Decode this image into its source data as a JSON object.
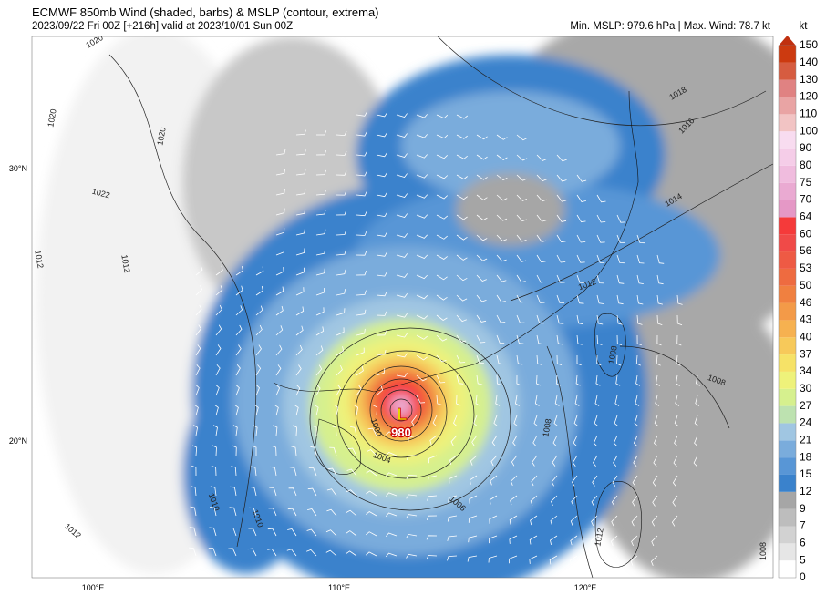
{
  "header": {
    "title": "ECMWF 850mb Wind (shaded, barbs) & MSLP (contour, extrema)",
    "subtitle": "2023/09/22 Fri 00Z [+216h] valid at 2023/10/01 Sun 00Z",
    "info": "Min. MSLP: 979.6 hPa | Max. Wind: 78.7 kt"
  },
  "colorbar": {
    "unit": "kt",
    "levels": [
      0,
      5,
      6,
      7,
      9,
      12,
      15,
      18,
      21,
      24,
      27,
      30,
      34,
      37,
      40,
      43,
      46,
      50,
      53,
      56,
      60,
      64,
      70,
      75,
      80,
      90,
      100,
      110,
      120,
      130,
      140,
      150
    ],
    "colors": [
      "#ffffff",
      "#e6e6e6",
      "#d2d2d2",
      "#bdbdbd",
      "#a6a6a6",
      "#3a82cc",
      "#5896d6",
      "#7aacdc",
      "#a0c6e2",
      "#bde2b0",
      "#d6f08e",
      "#eef27a",
      "#f6e267",
      "#f7c95a",
      "#f6b150",
      "#f39a48",
      "#f08040",
      "#ee6b40",
      "#ee5a44",
      "#f04a48",
      "#f53a3a",
      "#e598c6",
      "#eaaad2",
      "#f0bcde",
      "#f5cde8",
      "#f8dcf0",
      "#f2c4c4",
      "#e9a4a4",
      "#e08282",
      "#d65c40",
      "#cc3a10"
    ],
    "arrow_color": "#c03010"
  },
  "map": {
    "lat_labels": [
      "30°N",
      "20°N"
    ],
    "lon_labels": [
      "100°E",
      "110°E",
      "120°E"
    ],
    "contour_labels": [
      "1020",
      "1020",
      "1022",
      "1012",
      "1012",
      "1020",
      "1018",
      "1016",
      "1014",
      "1012",
      "1008",
      "1008",
      "1006",
      "1004",
      "1000",
      "1010",
      "1010",
      "1012",
      "1012",
      "1008",
      "1008"
    ],
    "low_symbol": "L",
    "low_value": "980"
  }
}
